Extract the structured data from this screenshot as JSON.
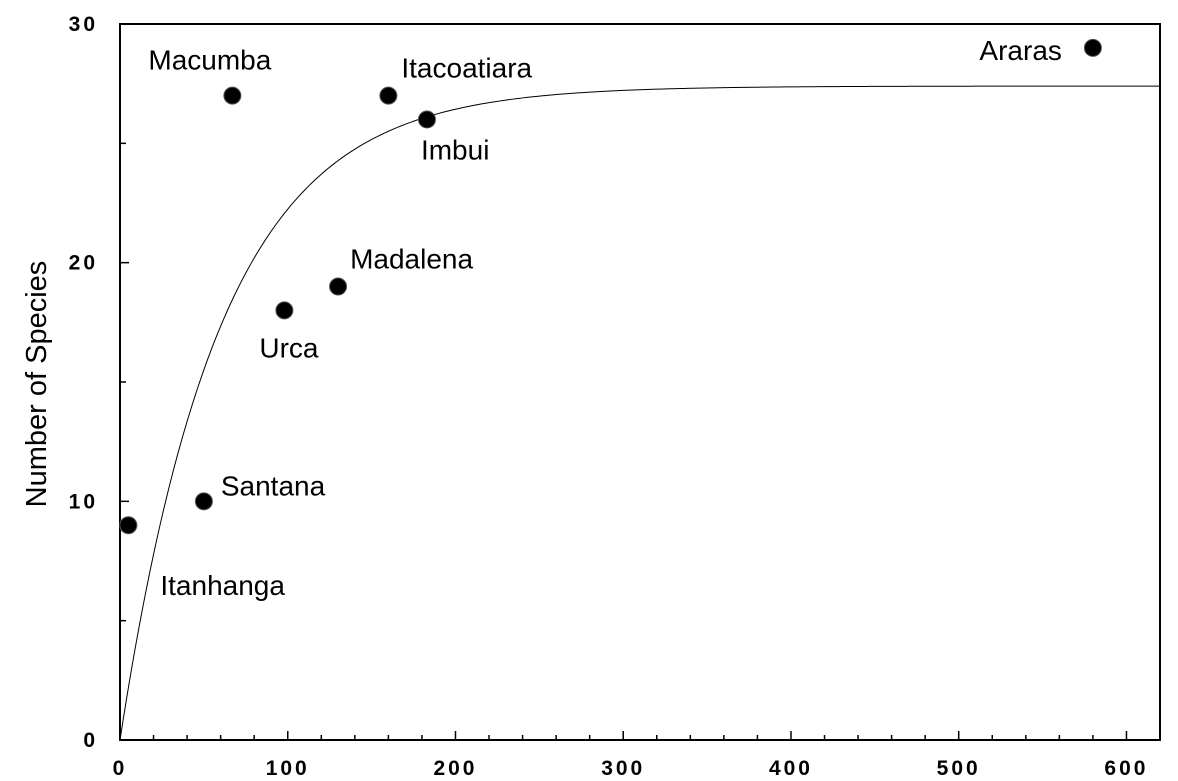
{
  "chart_data": {
    "type": "scatter",
    "title": "",
    "xlabel": "",
    "ylabel": "Number of Species",
    "xlim": [
      0,
      620
    ],
    "ylim": [
      0,
      30
    ],
    "x_ticks": [
      0,
      100,
      200,
      300,
      400,
      500,
      600
    ],
    "y_ticks": [
      0,
      10,
      20,
      30
    ],
    "grid": false,
    "legend": "none",
    "marker_color": "#000000",
    "points": [
      {
        "label": "Itanhanga",
        "x": 5,
        "y": 9
      },
      {
        "label": "Santana",
        "x": 50,
        "y": 10
      },
      {
        "label": "Macumba",
        "x": 67,
        "y": 27
      },
      {
        "label": "Urca",
        "x": 98,
        "y": 18
      },
      {
        "label": "Madalena",
        "x": 130,
        "y": 19
      },
      {
        "label": "Itacoatiara",
        "x": 160,
        "y": 27
      },
      {
        "label": "Imbui",
        "x": 183,
        "y": 26
      },
      {
        "label": "Araras",
        "x": 580,
        "y": 29
      }
    ],
    "fit_curve": {
      "model": "asymptotic",
      "asymptote": 27.4,
      "rate": 0.0167
    }
  }
}
